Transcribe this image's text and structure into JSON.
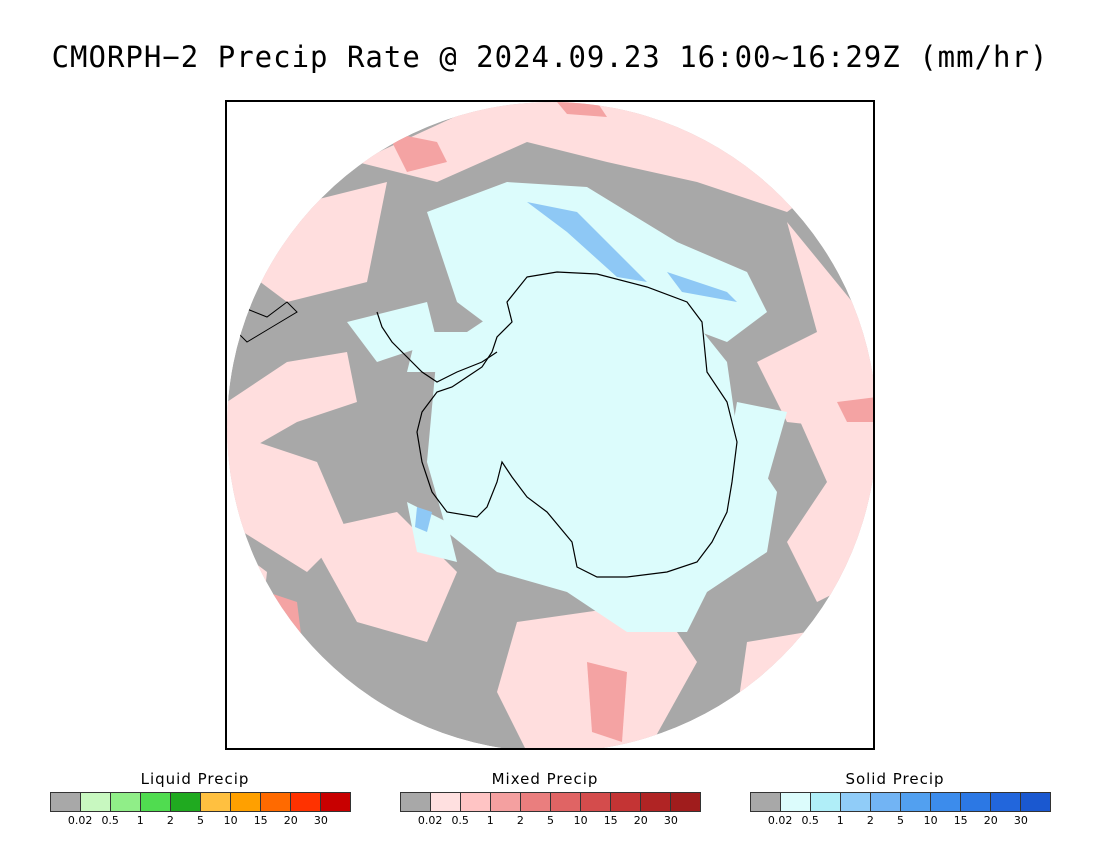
{
  "title": "CMORPH−2 Precip Rate @ 2024.09.23 16:00~16:29Z (mm/hr)",
  "map": {
    "projection": "south-polar-stereographic",
    "continent": "Antarctica",
    "colors": {
      "background_trace": "#a8a8a8",
      "mixed_light": "#ffdede",
      "mixed_mid": "#f4a3a3",
      "solid_light": "#dcfcfc",
      "solid_mid": "#8ec8f5",
      "coast": "#000000"
    }
  },
  "legends": [
    {
      "title": "Liquid Precip",
      "colors": [
        "#a8a8a8",
        "#c8f8c0",
        "#90ee88",
        "#50dc50",
        "#20aa20",
        "#ffc040",
        "#ffa000",
        "#ff6a00",
        "#ff3200",
        "#c80000"
      ],
      "ticks": [
        "0.02",
        "0.5",
        "1",
        "2",
        "5",
        "10",
        "15",
        "20",
        "30"
      ]
    },
    {
      "title": "Mixed Precip",
      "colors": [
        "#a8a8a8",
        "#ffe0e0",
        "#ffc4c4",
        "#f4a0a0",
        "#ea7e7e",
        "#e06464",
        "#d44c4c",
        "#c43434",
        "#b02424",
        "#a01c1c"
      ],
      "ticks": [
        "0.02",
        "0.5",
        "1",
        "2",
        "5",
        "10",
        "15",
        "20",
        "30"
      ]
    },
    {
      "title": "Solid Precip",
      "colors": [
        "#a8a8a8",
        "#dcfcfc",
        "#b0eef8",
        "#90ccf8",
        "#72b4f4",
        "#52a0f0",
        "#3c8cec",
        "#2c78e4",
        "#2266dc",
        "#1a58d0"
      ],
      "ticks": [
        "0.02",
        "0.5",
        "1",
        "2",
        "5",
        "10",
        "15",
        "20",
        "30"
      ]
    }
  ]
}
